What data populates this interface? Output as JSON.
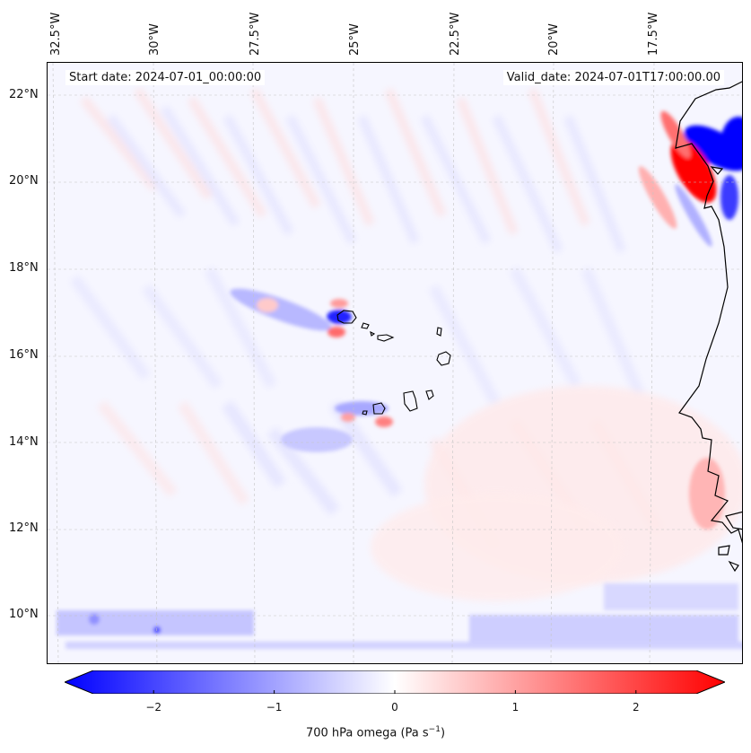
{
  "map": {
    "start_date": "Start date: 2024-07-01_00:00:00",
    "valid_date": "Valid_date: 2024-07-01T17:00:00.00",
    "longitude_labels": [
      "32.5°W",
      "30°W",
      "27.5°W",
      "25°W",
      "22.5°W",
      "20°W",
      "17.5°W"
    ],
    "latitude_labels": [
      "22°N",
      "20°N",
      "18°N",
      "16°N",
      "14°N",
      "12°N",
      "10°N"
    ],
    "colormap": {
      "negative": "#0000ff",
      "neutral": "#ffffff",
      "positive": "#ff0000"
    }
  },
  "colorbar": {
    "ticks": [
      "−2",
      "−1",
      "0",
      "1",
      "2"
    ],
    "tick_values": [
      -2,
      -1,
      0,
      1,
      2
    ],
    "range": [
      -2.5,
      2.5
    ],
    "label": "700 hPa omega (Pa s",
    "label_exp": "−1",
    "label_close": ")"
  }
}
